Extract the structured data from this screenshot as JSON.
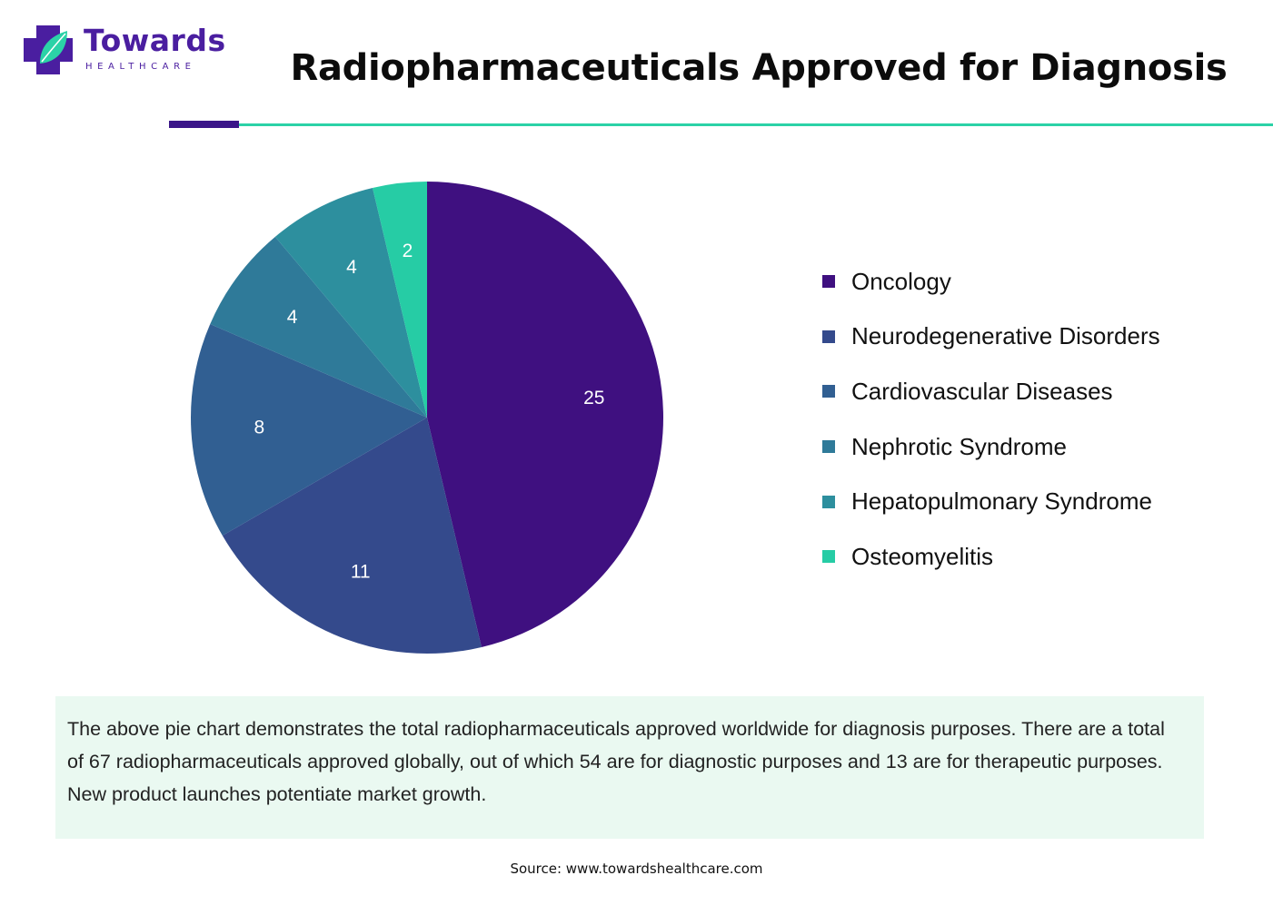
{
  "brand": {
    "name": "Towards",
    "subtitle": "HEALTHCARE",
    "icon": "medical-cross-leaf-logo",
    "colors": {
      "primary": "#4a1ea0",
      "accent": "#2bd2a7"
    }
  },
  "header": {
    "title": "Radiopharmaceuticals Approved for Diagnosis"
  },
  "chart_data": {
    "type": "pie",
    "title": "Radiopharmaceuticals Approved for Diagnosis",
    "categories": [
      "Oncology",
      "Neurodegenerative Disorders",
      "Cardiovascular Diseases",
      "Nephrotic Syndrome",
      "Hepatopulmonary Syndrome",
      "Osteomyelitis"
    ],
    "values": [
      25,
      11,
      8,
      4,
      4,
      2
    ],
    "colors": [
      "#3f1080",
      "#344a8c",
      "#315f92",
      "#2f7a99",
      "#2d8f9e",
      "#26cca5"
    ],
    "data_labels": [
      "25",
      "11",
      "8",
      "4",
      "4",
      "2"
    ],
    "start_angle": "12 o'clock",
    "direction": "clockwise",
    "legend_position": "right"
  },
  "description": "The above pie chart demonstrates the total radiopharmaceuticals approved worldwide for diagnosis purposes. There are a total of 67 radiopharmaceuticals approved globally, out of which 54 are for diagnostic purposes and 13 are for therapeutic purposes. New product launches potentiate market growth.",
  "footer": {
    "source": "Source: www.towardshealthcare.com"
  }
}
